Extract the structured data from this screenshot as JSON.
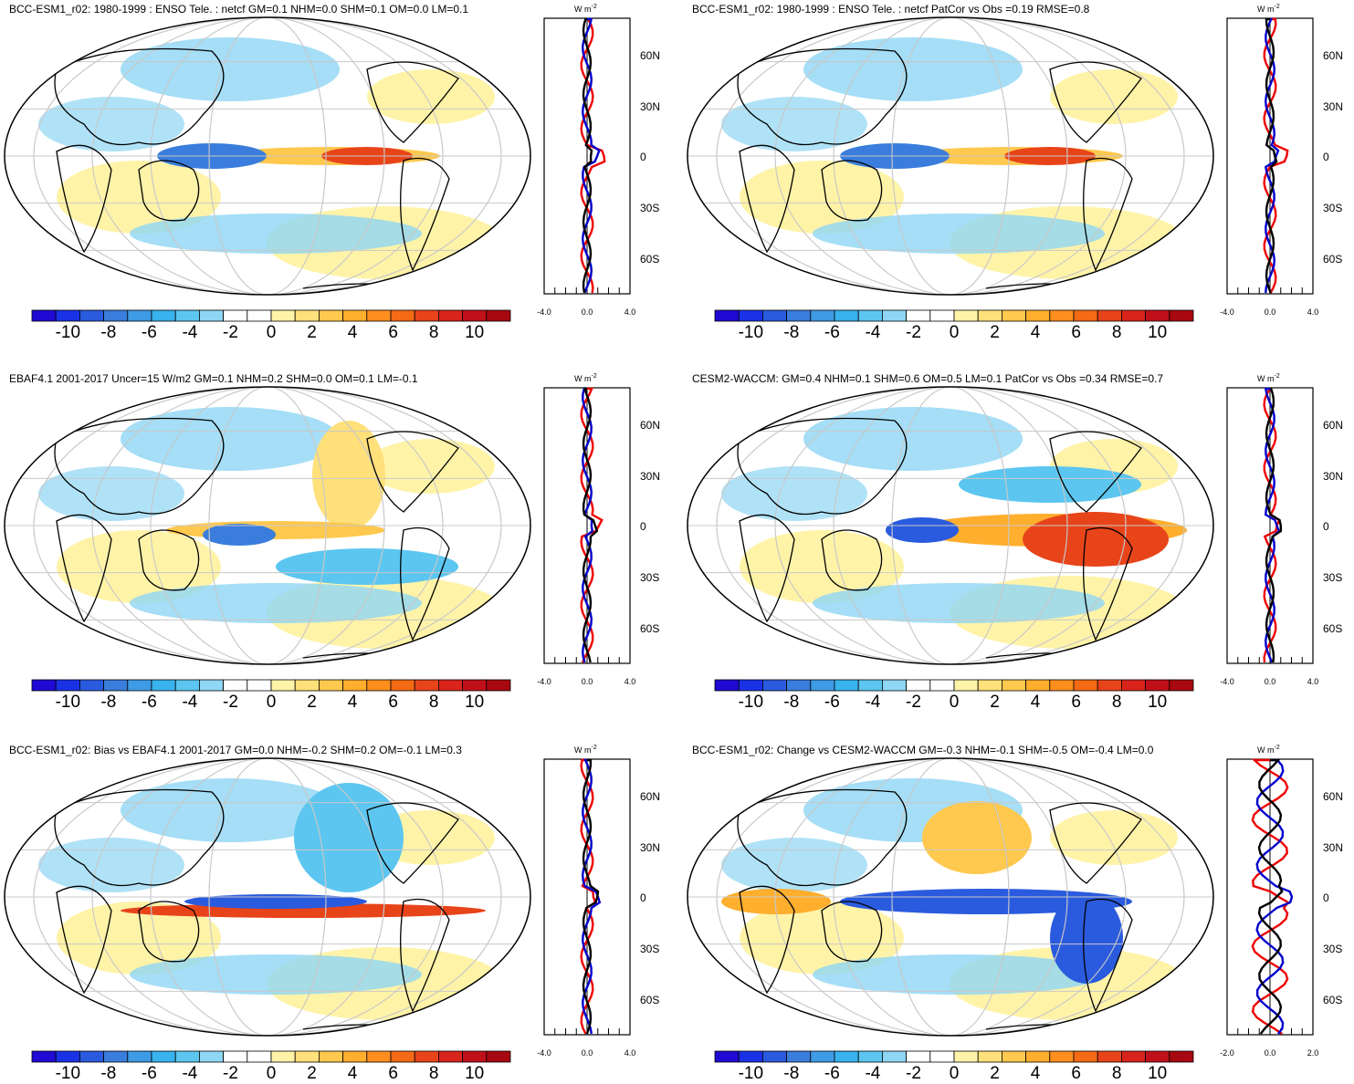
{
  "panels": [
    {
      "title": "BCC-ESM1_r02: 1980-1999 : ENSO Tele. : netcf GM=0.1 NHM=0.0 SHM=0.1 OM=0.0 LM=0.1",
      "profile_xticks": [
        "-4.0",
        "0.0",
        "4.0"
      ]
    },
    {
      "title": "BCC-ESM1_r02: 1980-1999 : ENSO Tele. : netcf PatCor vs Obs =0.19 RMSE=0.8",
      "profile_xticks": [
        "-4.0",
        "0.0",
        "4.0"
      ]
    },
    {
      "title": "EBAF4.1 2001-2017 Uncer=15 W/m2 GM=0.1 NHM=0.2 SHM=0.0 OM=0.1 LM=-0.1",
      "profile_xticks": [
        "-4.0",
        "0.0",
        "4.0"
      ]
    },
    {
      "title": "CESM2-WACCM: GM=0.4 NHM=0.1 SHM=0.6 OM=0.5 LM=0.1 PatCor vs Obs =0.34 RMSE=0.7",
      "profile_xticks": [
        "-4.0",
        "0.0",
        "4.0"
      ]
    },
    {
      "title": "BCC-ESM1_r02: Bias vs EBAF4.1 2001-2017 GM=0.0 NHM=-0.2 SHM=0.2 OM=-0.1 LM=0.3",
      "profile_xticks": [
        "-4.0",
        "0.0",
        "4.0"
      ]
    },
    {
      "title": "BCC-ESM1_r02: Change vs CESM2-WACCM GM=-0.3 NHM=-0.1 SHM=-0.5 OM=-0.4 LM=0.0",
      "profile_xticks": [
        "-2.0",
        "0.0",
        "2.0"
      ]
    }
  ],
  "lat_labels": [
    "60N",
    "30N",
    "0",
    "30S",
    "60S"
  ],
  "units": "W m",
  "units_exp": "-2",
  "colorbar": {
    "labels": [
      "-10",
      "-8",
      "-6",
      "-4",
      "-2",
      "0",
      "2",
      "4",
      "6",
      "8",
      "10"
    ],
    "colors": [
      "#1e0ad2",
      "#1a32e6",
      "#2a5bde",
      "#3a7ddc",
      "#3e9be6",
      "#38b3ee",
      "#5cc6f0",
      "#8ed6f4",
      "#ffffff",
      "#ffffff",
      "#fff3a8",
      "#ffe07a",
      "#ffc84e",
      "#ffae2e",
      "#ff8e1e",
      "#f56a14",
      "#e8441a",
      "#d8241a",
      "#c0101a",
      "#a80810"
    ]
  }
}
